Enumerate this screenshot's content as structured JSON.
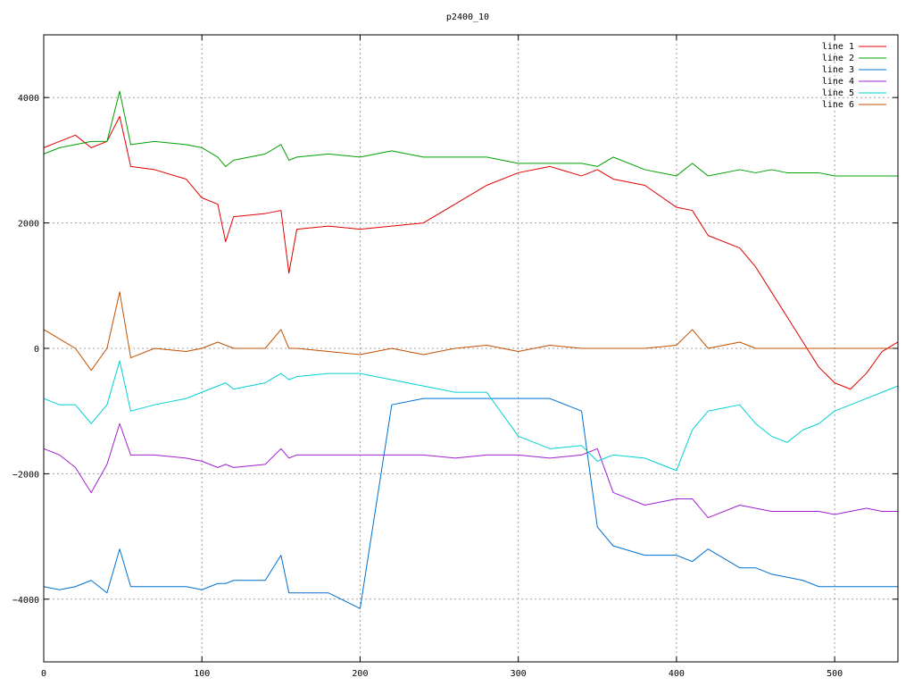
{
  "chart_data": {
    "type": "line",
    "title": "p2400_10",
    "xlabel": "",
    "ylabel": "",
    "xlim": [
      0,
      540
    ],
    "ylim": [
      -5000,
      5000
    ],
    "grid": true,
    "legend_position": "top-right",
    "x_ticks": [
      0,
      100,
      200,
      300,
      400,
      500
    ],
    "y_ticks": [
      -4000,
      -2000,
      0,
      2000,
      4000
    ],
    "x_tick_labels": [
      "0",
      "100",
      "200",
      "300",
      "400",
      "500"
    ],
    "y_tick_labels": [
      "−4000",
      "−2000",
      "0",
      "2000",
      "4000"
    ],
    "x": [
      0,
      10,
      20,
      30,
      40,
      48,
      55,
      70,
      90,
      100,
      110,
      115,
      120,
      140,
      150,
      155,
      160,
      180,
      200,
      220,
      240,
      260,
      280,
      300,
      320,
      340,
      350,
      360,
      380,
      400,
      410,
      420,
      440,
      450,
      460,
      470,
      480,
      490,
      500,
      510,
      520,
      530,
      540
    ],
    "series": [
      {
        "name": "line 1",
        "color": "#e00000",
        "values": [
          3200,
          3300,
          3400,
          3200,
          3300,
          3700,
          2900,
          2850,
          2700,
          2400,
          2300,
          1700,
          2100,
          2150,
          2200,
          1200,
          1900,
          1950,
          1900,
          1950,
          2000,
          2300,
          2600,
          2800,
          2900,
          2750,
          2850,
          2700,
          2600,
          2250,
          2200,
          1800,
          1600,
          1300,
          900,
          500,
          100,
          -300,
          -550,
          -650,
          -400,
          -50,
          100
        ]
      },
      {
        "name": "line 2",
        "color": "#00a000",
        "values": [
          3100,
          3200,
          3250,
          3300,
          3300,
          4100,
          3250,
          3300,
          3250,
          3200,
          3050,
          2900,
          3000,
          3100,
          3250,
          3000,
          3050,
          3100,
          3050,
          3150,
          3050,
          3050,
          3050,
          2950,
          2950,
          2950,
          2900,
          3050,
          2850,
          2750,
          2950,
          2750,
          2850,
          2800,
          2850,
          2800,
          2800,
          2800,
          2750,
          2750,
          2750,
          2750,
          2750
        ]
      },
      {
        "name": "line 3",
        "color": "#0070d0",
        "values": [
          -3800,
          -3850,
          -3800,
          -3700,
          -3900,
          -3200,
          -3800,
          -3800,
          -3800,
          -3850,
          -3750,
          -3750,
          -3700,
          -3700,
          -3300,
          -3900,
          -3900,
          -3900,
          -4150,
          -900,
          -800,
          -800,
          -800,
          -800,
          -800,
          -1000,
          -2850,
          -3150,
          -3300,
          -3300,
          -3400,
          -3200,
          -3500,
          -3500,
          -3600,
          -3650,
          -3700,
          -3800,
          -3800,
          -3800,
          -3800,
          -3800,
          -3800
        ]
      },
      {
        "name": "line 4",
        "color": "#a020d0",
        "values": [
          -1600,
          -1700,
          -1900,
          -2300,
          -1850,
          -1200,
          -1700,
          -1700,
          -1750,
          -1800,
          -1900,
          -1850,
          -1900,
          -1850,
          -1600,
          -1750,
          -1700,
          -1700,
          -1700,
          -1700,
          -1700,
          -1750,
          -1700,
          -1700,
          -1750,
          -1700,
          -1600,
          -2300,
          -2500,
          -2400,
          -2400,
          -2700,
          -2500,
          -2550,
          -2600,
          -2600,
          -2600,
          -2600,
          -2650,
          -2600,
          -2550,
          -2600,
          -2600
        ]
      },
      {
        "name": "line 5",
        "color": "#00d0d0",
        "values": [
          -800,
          -900,
          -900,
          -1200,
          -900,
          -200,
          -1000,
          -900,
          -800,
          -700,
          -600,
          -550,
          -650,
          -550,
          -400,
          -500,
          -450,
          -400,
          -400,
          -500,
          -600,
          -700,
          -700,
          -1400,
          -1600,
          -1550,
          -1800,
          -1700,
          -1750,
          -1950,
          -1300,
          -1000,
          -900,
          -1200,
          -1400,
          -1500,
          -1300,
          -1200,
          -1000,
          -900,
          -800,
          -700,
          -600
        ]
      },
      {
        "name": "line 6",
        "color": "#c05000",
        "values": [
          300,
          150,
          0,
          -350,
          0,
          900,
          -150,
          0,
          -50,
          0,
          100,
          50,
          0,
          0,
          300,
          0,
          0,
          -50,
          -100,
          0,
          -100,
          0,
          50,
          -50,
          50,
          0,
          0,
          0,
          0,
          50,
          300,
          0,
          100,
          0,
          0,
          0,
          0,
          0,
          0,
          0,
          0,
          0,
          0
        ]
      }
    ]
  }
}
